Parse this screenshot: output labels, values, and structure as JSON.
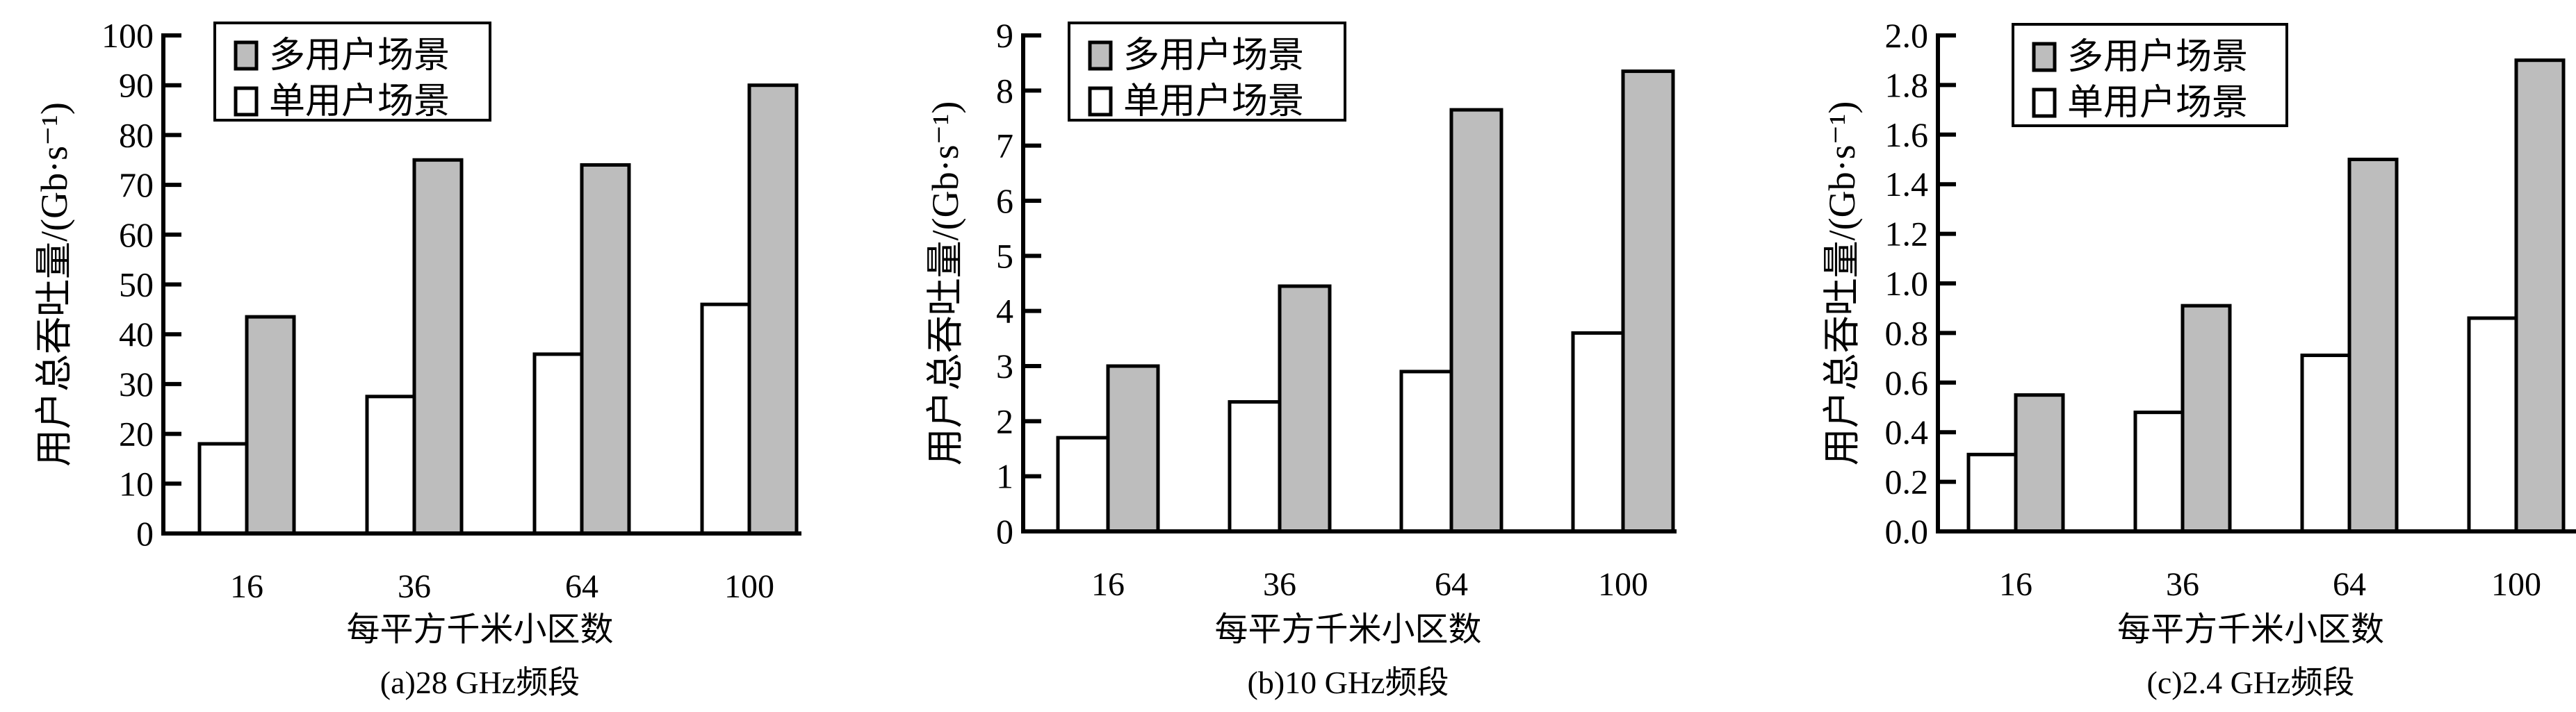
{
  "colors": {
    "multi": "#bdbdbd",
    "single": "#ffffff",
    "stroke": "#000000"
  },
  "chart_data": [
    {
      "type": "bar",
      "title": "(a)28 GHz频段",
      "xlabel": "每平方千米小区数",
      "ylabel": "用户总吞吐量/(Gb·s⁻¹)",
      "categories": [
        "16",
        "36",
        "64",
        "100"
      ],
      "ylim": [
        0,
        100
      ],
      "yticks": [
        "0",
        "10",
        "20",
        "30",
        "40",
        "50",
        "60",
        "70",
        "80",
        "90",
        "100"
      ],
      "legend_position": "top-left",
      "series": [
        {
          "name": "单用户场景",
          "values": [
            18,
            27.5,
            36,
            46
          ]
        },
        {
          "name": "多用户场景",
          "values": [
            43.5,
            75,
            74,
            90
          ]
        }
      ]
    },
    {
      "type": "bar",
      "title": "(b)10 GHz频段",
      "xlabel": "每平方千米小区数",
      "ylabel": "用户总吞吐量/(Gb·s⁻¹)",
      "categories": [
        "16",
        "36",
        "64",
        "100"
      ],
      "ylim": [
        0,
        9
      ],
      "yticks": [
        "0",
        "1",
        "2",
        "3",
        "4",
        "5",
        "6",
        "7",
        "8",
        "9"
      ],
      "legend_position": "top-left",
      "series": [
        {
          "name": "单用户场景",
          "values": [
            1.7,
            2.35,
            2.9,
            3.6
          ]
        },
        {
          "name": "多用户场景",
          "values": [
            3.0,
            4.45,
            7.65,
            8.35
          ]
        }
      ]
    },
    {
      "type": "bar",
      "title": "(c)2.4 GHz频段",
      "xlabel": "每平方千米小区数",
      "ylabel": "用户总吞吐量/(Gb·s⁻¹)",
      "categories": [
        "16",
        "36",
        "64",
        "100"
      ],
      "ylim": [
        0,
        2.0
      ],
      "yticks": [
        "0.0",
        "0.2",
        "0.4",
        "0.6",
        "0.8",
        "1.0",
        "1.2",
        "1.4",
        "1.6",
        "1.8",
        "2.0"
      ],
      "legend_position": "top-left",
      "series": [
        {
          "name": "单用户场景",
          "values": [
            0.31,
            0.48,
            0.71,
            0.86
          ]
        },
        {
          "name": "多用户场景",
          "values": [
            0.55,
            0.91,
            1.5,
            1.9
          ]
        }
      ]
    }
  ]
}
